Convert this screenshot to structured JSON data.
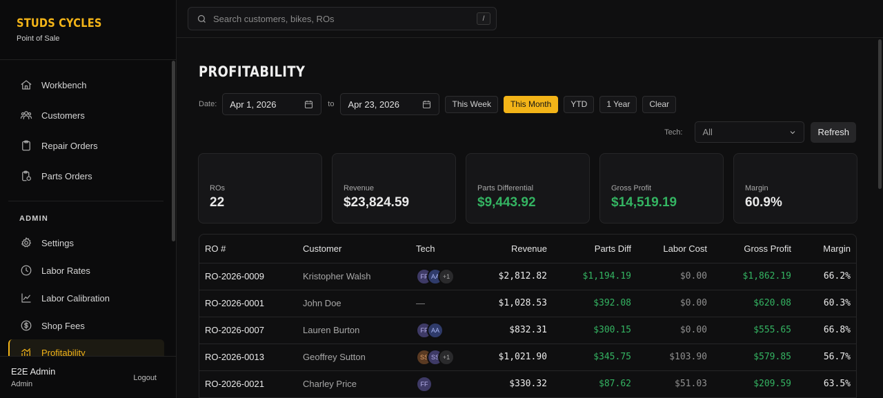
{
  "brand": {
    "name": "STUDS CYCLES",
    "subtitle": "Point of Sale"
  },
  "nav": [
    {
      "label": "Workbench",
      "icon": "home-icon"
    },
    {
      "label": "Customers",
      "icon": "users-icon"
    },
    {
      "label": "Repair Orders",
      "icon": "clipboard-icon"
    },
    {
      "label": "Parts Orders",
      "icon": "clipboard-list-icon"
    }
  ],
  "admin": {
    "section_label": "ADMIN",
    "items": [
      {
        "label": "Settings",
        "icon": "gear-icon"
      },
      {
        "label": "Labor Rates",
        "icon": "clock-icon"
      },
      {
        "label": "Labor Calibration",
        "icon": "line-chart-icon"
      },
      {
        "label": "Shop Fees",
        "icon": "dollar-circle-icon"
      },
      {
        "label": "Profitability",
        "icon": "profitability-icon",
        "active": true
      }
    ]
  },
  "user": {
    "name": "E2E Admin",
    "role": "Admin",
    "logout_label": "Logout"
  },
  "search": {
    "placeholder": "Search customers, bikes, ROs",
    "shortcut": "/"
  },
  "page": {
    "title": "PROFITABILITY"
  },
  "filters": {
    "date_label": "Date:",
    "from": "Apr 1, 2026",
    "to_label": "to",
    "to": "Apr 23, 2026",
    "ranges": [
      "This Week",
      "This Month",
      "YTD",
      "1 Year",
      "Clear"
    ],
    "active_range": "This Month",
    "tech_label": "Tech:",
    "tech_value": "All",
    "refresh_label": "Refresh"
  },
  "summary": [
    {
      "label": "ROs",
      "value": "22",
      "color": "white"
    },
    {
      "label": "Revenue",
      "value": "$23,824.59",
      "color": "white"
    },
    {
      "label": "Parts Differential",
      "value": "$9,443.92",
      "color": "green"
    },
    {
      "label": "Gross Profit",
      "value": "$14,519.19",
      "color": "green"
    },
    {
      "label": "Margin",
      "value": "60.9%",
      "color": "white"
    }
  ],
  "colors": {
    "accent": "#f3b418",
    "positive": "#34b462"
  },
  "table": {
    "columns": [
      "RO #",
      "Customer",
      "Tech",
      "Revenue",
      "Parts Diff",
      "Labor Cost",
      "Gross Profit",
      "Margin"
    ],
    "rows": [
      {
        "ro": "RO-2026-0009",
        "customer": "Kristopher Walsh",
        "techs": [
          {
            "initials": "FF",
            "tone": "purple"
          },
          {
            "initials": "AA",
            "tone": "blue"
          },
          {
            "initials": "+1",
            "tone": "more"
          }
        ],
        "revenue": "$2,812.82",
        "parts_diff": "$1,194.19",
        "labor_cost": "$0.00",
        "gross_profit": "$1,862.19",
        "margin": "66.2%"
      },
      {
        "ro": "RO-2026-0001",
        "customer": "John Doe",
        "techs": [],
        "no_tech": "—",
        "revenue": "$1,028.53",
        "parts_diff": "$392.08",
        "labor_cost": "$0.00",
        "gross_profit": "$620.08",
        "margin": "60.3%"
      },
      {
        "ro": "RO-2026-0007",
        "customer": "Lauren Burton",
        "techs": [
          {
            "initials": "FF",
            "tone": "purple"
          },
          {
            "initials": "AA",
            "tone": "blue"
          }
        ],
        "revenue": "$832.31",
        "parts_diff": "$300.15",
        "labor_cost": "$0.00",
        "gross_profit": "$555.65",
        "margin": "66.8%"
      },
      {
        "ro": "RO-2026-0013",
        "customer": "Geoffrey Sutton",
        "techs": [
          {
            "initials": "SS",
            "tone": "brown"
          },
          {
            "initials": "SS",
            "tone": "purple"
          },
          {
            "initials": "+1",
            "tone": "more"
          }
        ],
        "revenue": "$1,021.90",
        "parts_diff": "$345.75",
        "labor_cost": "$103.90",
        "gross_profit": "$579.85",
        "margin": "56.7%"
      },
      {
        "ro": "RO-2026-0021",
        "customer": "Charley Price",
        "techs": [
          {
            "initials": "FF",
            "tone": "purple"
          }
        ],
        "revenue": "$330.32",
        "parts_diff": "$87.62",
        "labor_cost": "$51.03",
        "gross_profit": "$209.59",
        "margin": "63.5%"
      }
    ]
  }
}
